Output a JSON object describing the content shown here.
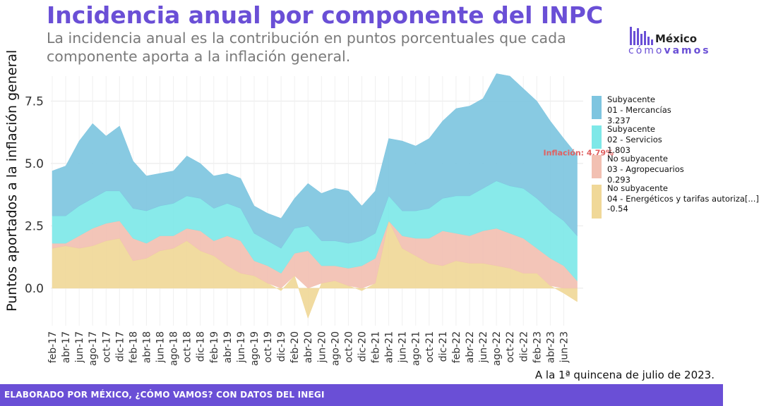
{
  "header": {
    "title": "Incidencia anual por componente del INPC",
    "subtitle": "La incidencia anual es la contribución en puntos porcentuales que cada componente aporta a la inflación general."
  },
  "logo": {
    "top": "México",
    "bottom_left": "cómo",
    "bottom_right": "vamos"
  },
  "note": "A la 1ª quincena de julio de 2023.",
  "footer": "ELABORADO POR MÉXICO, ¿CÓMO VAMOS? CON DATOS DEL INEGI",
  "colors": {
    "merc": "#7ec5e0",
    "serv": "#7ee8e8",
    "agro": "#f2c0b2",
    "energ": "#f0d898",
    "annot": "#e06060",
    "brand": "#6a4fd6"
  },
  "legend": [
    {
      "line1": "Subyacente",
      "line2": "01 - Mercancías",
      "line3": "3.237",
      "color_key": "merc"
    },
    {
      "line1": "Subyacente",
      "line2": "02 - Servicios",
      "line3": "1.803",
      "color_key": "serv"
    },
    {
      "line1": "No subyacente",
      "line2": "03 - Agropecuarios",
      "line3": "0.293",
      "color_key": "agro"
    },
    {
      "line1": "No subyacente",
      "line2": "04 - Energéticos y tarifas autoriza[...]",
      "line3": "-0.54",
      "color_key": "energ"
    }
  ],
  "chart_data": {
    "type": "area",
    "stacked": true,
    "ylabel": "Puntos aportados a la inflación general",
    "xlabel": "",
    "ylim": [
      -1.5,
      8.5
    ],
    "yticks": [
      0.0,
      2.5,
      5.0,
      7.5
    ],
    "ytick_labels": [
      "0.0",
      "2.5",
      "5.0",
      "7.5"
    ],
    "grid": true,
    "legend_position": "right",
    "xtick_labels": [
      "feb-17",
      "abr-17",
      "jun-17",
      "ago-17",
      "oct-17",
      "dic-17",
      "feb-18",
      "abr-18",
      "jun-18",
      "ago-18",
      "oct-18",
      "dic-18",
      "feb-19",
      "abr-19",
      "jun-19",
      "ago-19",
      "oct-19",
      "dic-19",
      "feb-20",
      "abr-20",
      "jun-20",
      "ago-20",
      "oct-20",
      "dic-20",
      "feb-21",
      "abr-21",
      "jun-21",
      "ago-21",
      "oct-21",
      "dic-21",
      "feb-22",
      "abr-22",
      "jun-22",
      "ago-22",
      "oct-22",
      "dic-22",
      "feb-23",
      "abr-23",
      "jun-23"
    ],
    "x": [
      "feb-17",
      "abr-17",
      "jun-17",
      "ago-17",
      "oct-17",
      "dic-17",
      "feb-18",
      "abr-18",
      "jun-18",
      "ago-18",
      "oct-18",
      "dic-18",
      "feb-19",
      "abr-19",
      "jun-19",
      "ago-19",
      "oct-19",
      "dic-19",
      "feb-20",
      "abr-20",
      "jun-20",
      "ago-20",
      "oct-20",
      "dic-20",
      "feb-21",
      "abr-21",
      "jun-21",
      "ago-21",
      "oct-21",
      "dic-21",
      "feb-22",
      "abr-22",
      "jun-22",
      "ago-22",
      "oct-22",
      "dic-22",
      "feb-23",
      "abr-23",
      "jun-23",
      "jul-23"
    ],
    "series": [
      {
        "name": "04 - Energéticos y tarifas autoriza[...]",
        "color_key": "energ",
        "values": [
          1.6,
          1.7,
          1.6,
          1.7,
          1.9,
          2.0,
          1.1,
          1.2,
          1.5,
          1.6,
          1.9,
          1.5,
          1.3,
          0.9,
          0.6,
          0.5,
          0.2,
          -0.1,
          0.5,
          -1.2,
          0.2,
          0.3,
          0.1,
          -0.1,
          0.2,
          2.7,
          1.6,
          1.3,
          1.0,
          0.9,
          1.1,
          1.0,
          1.0,
          0.9,
          0.8,
          0.6,
          0.6,
          0.1,
          -0.2,
          -0.54
        ]
      },
      {
        "name": "03 - Agropecuarios",
        "color_key": "agro",
        "values": [
          0.2,
          0.1,
          0.5,
          0.7,
          0.7,
          0.7,
          0.9,
          0.6,
          0.6,
          0.5,
          0.5,
          0.8,
          0.6,
          1.2,
          1.3,
          0.6,
          0.7,
          0.6,
          0.9,
          1.5,
          0.7,
          0.6,
          0.7,
          0.9,
          1.0,
          0.0,
          0.5,
          0.7,
          1.0,
          1.4,
          1.1,
          1.1,
          1.3,
          1.5,
          1.4,
          1.4,
          1.0,
          1.1,
          0.9,
          0.293
        ]
      },
      {
        "name": "02 - Servicios",
        "color_key": "serv",
        "values": [
          1.1,
          1.1,
          1.2,
          1.2,
          1.3,
          1.2,
          1.2,
          1.3,
          1.2,
          1.3,
          1.3,
          1.3,
          1.3,
          1.3,
          1.3,
          1.1,
          1.0,
          1.0,
          1.0,
          1.0,
          1.0,
          1.0,
          1.0,
          1.0,
          1.0,
          1.0,
          1.0,
          1.1,
          1.2,
          1.3,
          1.5,
          1.6,
          1.7,
          1.9,
          1.9,
          2.0,
          2.0,
          1.9,
          1.8,
          1.803
        ]
      },
      {
        "name": "01 - Mercancías",
        "color_key": "merc",
        "values": [
          1.8,
          2.0,
          2.6,
          3.0,
          2.2,
          2.6,
          1.9,
          1.4,
          1.3,
          1.3,
          1.6,
          1.4,
          1.3,
          1.2,
          1.2,
          1.1,
          1.1,
          1.2,
          1.2,
          1.7,
          1.9,
          2.1,
          2.1,
          1.4,
          1.7,
          2.3,
          2.8,
          2.6,
          2.8,
          3.1,
          3.5,
          3.6,
          3.6,
          4.3,
          4.4,
          4.0,
          3.9,
          3.6,
          3.3,
          3.237
        ]
      }
    ],
    "annotation": {
      "text": "Inflación: 4.79%",
      "x": "jul-23",
      "y": 4.79
    }
  }
}
